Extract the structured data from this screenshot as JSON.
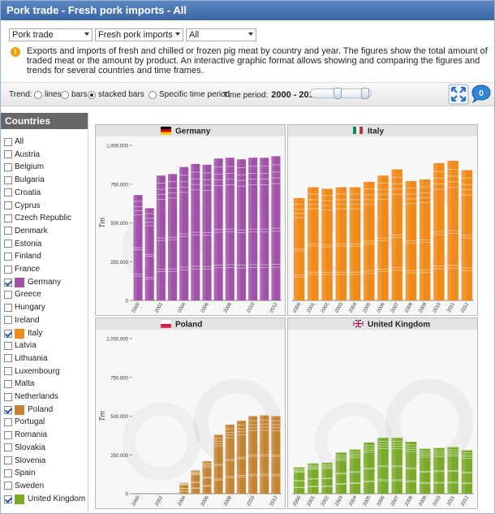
{
  "title": "Pork trade - Fresh pork imports - All",
  "selects": [
    "Pork trade",
    "Fresh pork imports",
    "All"
  ],
  "info": "Exports and imports of fresh and chilled or frozen pig meat by country and year. The figures show the total amount of traded meat or the amount by product. An interactive graphic format allows showing and comparing the figures and trends for several countries and time frames.",
  "trend": {
    "label": "Trend:",
    "lines": "lines",
    "bars": "bars",
    "stacked": "stacked bars",
    "specific": "Specific time period",
    "period_label": "Time period:",
    "period_from": "2000",
    "period_sep": "-",
    "period_to": "2012",
    "badge": "0"
  },
  "sidebar": {
    "title": "Countries",
    "items": [
      {
        "name": "All",
        "checked": false
      },
      {
        "name": "Austria",
        "checked": false
      },
      {
        "name": "Belgium",
        "checked": false
      },
      {
        "name": "Bulgaria",
        "checked": false
      },
      {
        "name": "Croatia",
        "checked": false
      },
      {
        "name": "Cyprus",
        "checked": false
      },
      {
        "name": "Czech Republic",
        "checked": false
      },
      {
        "name": "Denmark",
        "checked": false
      },
      {
        "name": "Estonia",
        "checked": false
      },
      {
        "name": "Finland",
        "checked": false
      },
      {
        "name": "France",
        "checked": false
      },
      {
        "name": "Germany",
        "checked": true,
        "color": "#a052a8"
      },
      {
        "name": "Greece",
        "checked": false
      },
      {
        "name": "Hungary",
        "checked": false
      },
      {
        "name": "Ireland",
        "checked": false
      },
      {
        "name": "Italy",
        "checked": true,
        "color": "#f08a1a"
      },
      {
        "name": "Latvia",
        "checked": false
      },
      {
        "name": "Lithuania",
        "checked": false
      },
      {
        "name": "Luxembourg",
        "checked": false
      },
      {
        "name": "Malta",
        "checked": false
      },
      {
        "name": "Netherlands",
        "checked": false
      },
      {
        "name": "Poland",
        "checked": true,
        "color": "#c58434"
      },
      {
        "name": "Portugal",
        "checked": false
      },
      {
        "name": "Romania",
        "checked": false
      },
      {
        "name": "Slovakia",
        "checked": false
      },
      {
        "name": "Slovenia",
        "checked": false
      },
      {
        "name": "Spain",
        "checked": false
      },
      {
        "name": "Sweden",
        "checked": false
      },
      {
        "name": "United Kingdom",
        "checked": true,
        "color": "#7aaa2a"
      }
    ]
  },
  "chart_data": [
    {
      "type": "bar",
      "title": "Germany",
      "color": "#a052a8",
      "ylabel": "Tm",
      "ylim": [
        0,
        1000000
      ],
      "yticks": [
        "0",
        "250.000",
        "500.000",
        "750.000",
        "1.000.000"
      ],
      "x": [
        "2000",
        "2001",
        "2002",
        "2003",
        "2004",
        "2005",
        "2006",
        "2007",
        "2008",
        "2009",
        "2010",
        "2011",
        "2012"
      ],
      "xticks": [
        "2000",
        "2002",
        "2004",
        "2006",
        "2008",
        "2010",
        "2012"
      ],
      "values": [
        680000,
        595000,
        805000,
        815000,
        860000,
        880000,
        875000,
        915000,
        920000,
        910000,
        920000,
        920000,
        930000
      ]
    },
    {
      "type": "bar",
      "title": "Italy",
      "color": "#f08a1a",
      "ylabel": "",
      "ylim": [
        0,
        1000000
      ],
      "yticks": [],
      "x": [
        "2000",
        "2001",
        "2002",
        "2003",
        "2004",
        "2005",
        "2006",
        "2007",
        "2008",
        "2009",
        "2010",
        "2011",
        "2012"
      ],
      "xticks": [
        "2000",
        "2001",
        "2002",
        "2003",
        "2004",
        "2005",
        "2006",
        "2007",
        "2008",
        "2009",
        "2010",
        "2011",
        "2012"
      ],
      "values": [
        660000,
        730000,
        720000,
        730000,
        730000,
        765000,
        805000,
        845000,
        770000,
        780000,
        885000,
        900000,
        840000
      ]
    },
    {
      "type": "bar",
      "title": "Poland",
      "color": "#c58434",
      "ylabel": "Tm",
      "ylim": [
        0,
        1000000
      ],
      "yticks": [
        "0",
        "250.000",
        "500.000",
        "750.000",
        "1.000.000"
      ],
      "x": [
        "2000",
        "2001",
        "2002",
        "2003",
        "2004",
        "2005",
        "2006",
        "2007",
        "2008",
        "2009",
        "2010",
        "2011",
        "2012"
      ],
      "xticks": [
        "2000",
        "2002",
        "2004",
        "2006",
        "2008",
        "2010",
        "2012"
      ],
      "values": [
        0,
        0,
        0,
        0,
        70000,
        150000,
        210000,
        380000,
        445000,
        470000,
        500000,
        505000,
        500000
      ]
    },
    {
      "type": "bar",
      "title": "United Kingdom",
      "color": "#7aaa2a",
      "ylabel": "",
      "ylim": [
        0,
        1000000
      ],
      "yticks": [],
      "x": [
        "2000",
        "2001",
        "2002",
        "2003",
        "2004",
        "2005",
        "2006",
        "2007",
        "2008",
        "2009",
        "2010",
        "2011",
        "2012"
      ],
      "xticks": [
        "2000",
        "2001",
        "2002",
        "2003",
        "2004",
        "2005",
        "2006",
        "2007",
        "2008",
        "2009",
        "2010",
        "2011",
        "2012"
      ],
      "values": [
        170000,
        195000,
        200000,
        265000,
        285000,
        330000,
        360000,
        360000,
        335000,
        290000,
        295000,
        300000,
        280000
      ]
    }
  ]
}
